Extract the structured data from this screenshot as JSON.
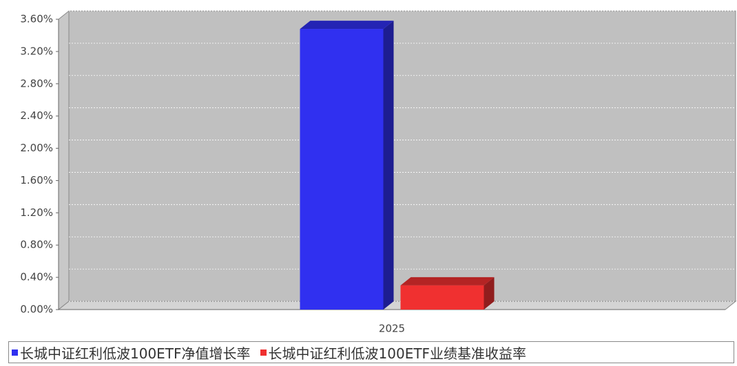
{
  "chart_data": {
    "type": "bar3d",
    "categories": [
      "2025"
    ],
    "series": [
      {
        "name": "长城中证红利低波100ETF净值增长率",
        "color": "#3030f0",
        "values": [
          3.48
        ]
      },
      {
        "name": "长城中证红利低波100ETF业绩基准收益率",
        "color": "#f03030",
        "values": [
          0.3
        ]
      }
    ],
    "ylim": [
      0,
      3.6
    ],
    "yticks": [
      {
        "value": 0,
        "label": "0.00%"
      },
      {
        "value": 0.4,
        "label": "0.40%"
      },
      {
        "value": 0.8,
        "label": "0.80%"
      },
      {
        "value": 1.2,
        "label": "1.20%"
      },
      {
        "value": 1.6,
        "label": "1.60%"
      },
      {
        "value": 2.0,
        "label": "2.00%"
      },
      {
        "value": 2.4,
        "label": "2.40%"
      },
      {
        "value": 2.8,
        "label": "2.80%"
      },
      {
        "value": 3.2,
        "label": "3.20%"
      },
      {
        "value": 3.6,
        "label": "3.60%"
      }
    ],
    "grid": true
  }
}
